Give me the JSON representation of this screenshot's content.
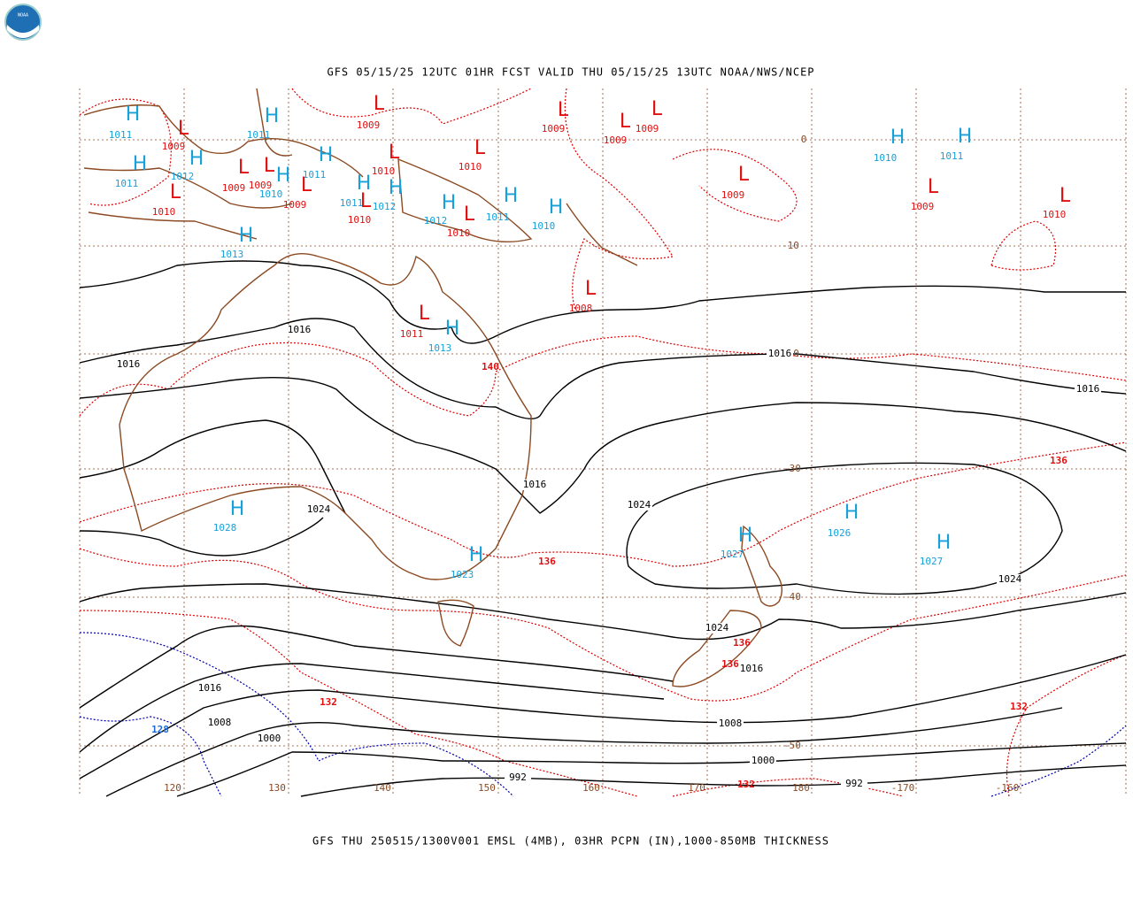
{
  "header": {
    "title": "GFS 05/15/25 12UTC 01HR FCST VALID THU 05/15/25 13UTC NOAA/NWS/NCEP"
  },
  "footer": {
    "caption": "GFS THU 250515/1300V001 EMSL (4MB), 03HR PCPN (IN),1000-850MB THICKNESS"
  },
  "logo": {
    "label": "NOAA"
  },
  "longitude_labels": [
    120,
    130,
    140,
    150,
    160,
    170,
    180,
    -170,
    -160
  ],
  "latitude_labels": [
    0,
    -10,
    -20,
    -30,
    -40,
    -50
  ],
  "highs": [
    {
      "symbol": "H",
      "value": 1011
    },
    {
      "symbol": "H",
      "value": 1011
    },
    {
      "symbol": "H",
      "value": 1011
    },
    {
      "symbol": "H",
      "value": 1012
    },
    {
      "symbol": "H",
      "value": 1010
    },
    {
      "symbol": "H",
      "value": 1011
    },
    {
      "symbol": "H",
      "value": 1011
    },
    {
      "symbol": "H",
      "value": 1012
    },
    {
      "symbol": "H",
      "value": 1012
    },
    {
      "symbol": "H",
      "value": 1011
    },
    {
      "symbol": "H",
      "value": 1010
    },
    {
      "symbol": "H",
      "value": 1013
    },
    {
      "symbol": "H",
      "value": 1013
    },
    {
      "symbol": "H",
      "value": 1010
    },
    {
      "symbol": "H",
      "value": 1011
    },
    {
      "symbol": "H",
      "value": 1028
    },
    {
      "symbol": "H",
      "value": 1023
    },
    {
      "symbol": "H",
      "value": 1027
    },
    {
      "symbol": "H",
      "value": 1026
    },
    {
      "symbol": "H",
      "value": 1027
    }
  ],
  "lows": [
    {
      "symbol": "L",
      "value": 1009
    },
    {
      "symbol": "L",
      "value": 1009
    },
    {
      "symbol": "L",
      "value": 1009
    },
    {
      "symbol": "L",
      "value": 1009
    },
    {
      "symbol": "L",
      "value": 1009
    },
    {
      "symbol": "L",
      "value": 1010
    },
    {
      "symbol": "L",
      "value": 1010
    },
    {
      "symbol": "L",
      "value": 1009
    },
    {
      "symbol": "L",
      "value": 1009
    },
    {
      "symbol": "L",
      "value": 1009
    },
    {
      "symbol": "L",
      "value": 1010
    },
    {
      "symbol": "L",
      "value": 1010
    },
    {
      "symbol": "L",
      "value": 1010
    },
    {
      "symbol": "L",
      "value": 1009
    },
    {
      "symbol": "L",
      "value": 1009
    },
    {
      "symbol": "L",
      "value": 1010
    },
    {
      "symbol": "L",
      "value": 1008
    },
    {
      "symbol": "L",
      "value": 1011
    }
  ],
  "isobar_labels": [
    1016,
    1016,
    1016,
    1016,
    1016,
    1024,
    1024,
    1024,
    1024,
    1016,
    1016,
    1008,
    1008,
    1000,
    1000,
    992,
    992
  ],
  "thickness_labels": [
    140,
    136,
    136,
    136,
    136,
    132,
    132,
    132,
    128
  ]
}
